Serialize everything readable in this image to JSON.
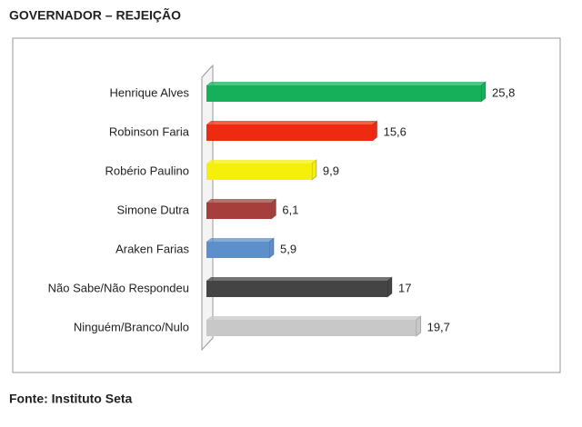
{
  "chart_data": {
    "type": "bar",
    "orientation": "horizontal",
    "title": "GOVERNADOR – REJEIÇÃO",
    "source": "Fonte: Instituto Seta",
    "categories": [
      "Henrique Alves",
      "Robinson Faria",
      "Robério Paulino",
      "Simone Dutra",
      "Araken Farias",
      "Não Sabe/Não Respondeu",
      "Ninguém/Branco/Nulo"
    ],
    "values": [
      25.8,
      15.6,
      9.9,
      6.1,
      5.9,
      17,
      19.7
    ],
    "value_labels": [
      "25,8",
      "15,6",
      "9,9",
      "6,1",
      "5,9",
      "17",
      "19,7"
    ],
    "colors": [
      "#16b05a",
      "#ee2a10",
      "#f5f00a",
      "#a63e3c",
      "#5d8fcb",
      "#444444",
      "#c8c8c8"
    ]
  }
}
